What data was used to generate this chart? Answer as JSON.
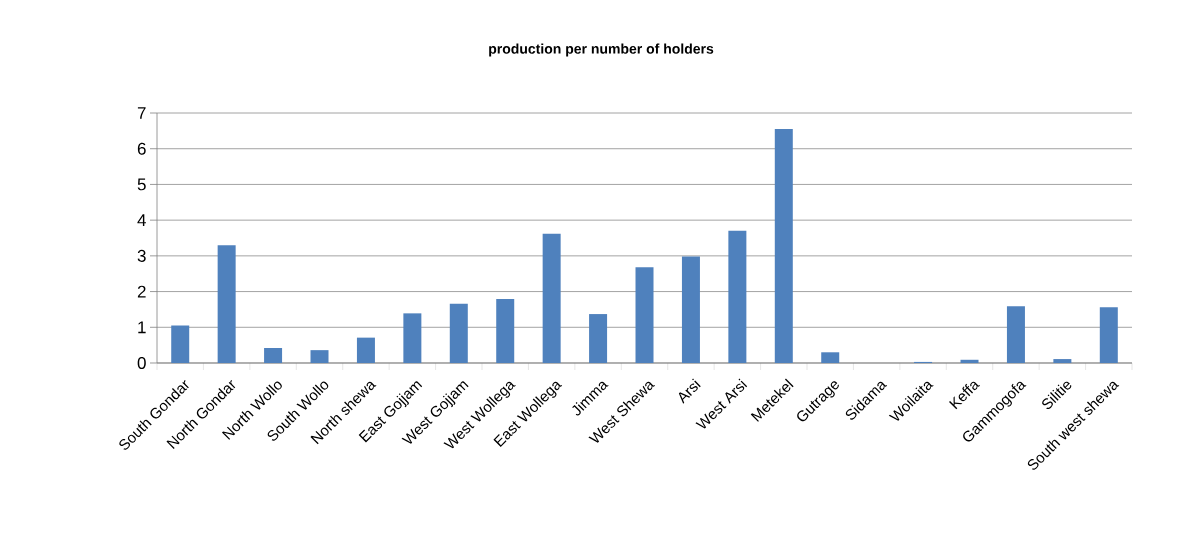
{
  "chart_data": {
    "type": "bar",
    "title": "production per number of holders",
    "categories": [
      "South Gondar",
      "North Gondar",
      "North Wollo",
      "South Wollo",
      "North shewa",
      "East Gojjam",
      "West Gojjam",
      "West Wollega",
      "East Wollega",
      "Jimma",
      "West Shewa",
      "Arsi",
      "West Arsi",
      "Metekel",
      "Gutrage",
      "Sidama",
      "Woilaita",
      "Keffa",
      "Gammogofa",
      "Silitie",
      "South west shewa"
    ],
    "values": [
      1.05,
      3.3,
      0.42,
      0.36,
      0.71,
      1.39,
      1.66,
      1.79,
      3.62,
      1.37,
      2.68,
      2.98,
      3.7,
      6.55,
      0.3,
      0,
      0.03,
      0.09,
      1.59,
      0.11,
      1.56
    ],
    "color": "#4f81bd",
    "ylim": [
      0,
      7
    ],
    "yticks": [
      0,
      1,
      2,
      3,
      4,
      5,
      6,
      7
    ],
    "grid": "y"
  }
}
